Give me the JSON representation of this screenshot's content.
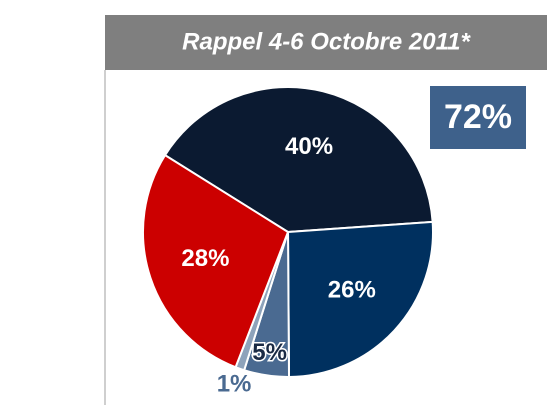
{
  "chart_data": {
    "type": "pie",
    "title": "Rappel 4-6 Octobre 2011*",
    "badge": "72%",
    "categories": [
      null,
      null,
      null,
      null,
      null
    ],
    "values": [
      40,
      26,
      5,
      1,
      28
    ],
    "value_labels": [
      "40%",
      "26%",
      "5%",
      "1%",
      "28%"
    ],
    "colors": [
      "#0b1a31",
      "#00305f",
      "#4a6a91",
      "#8ea3bb",
      "#cc0000"
    ]
  }
}
